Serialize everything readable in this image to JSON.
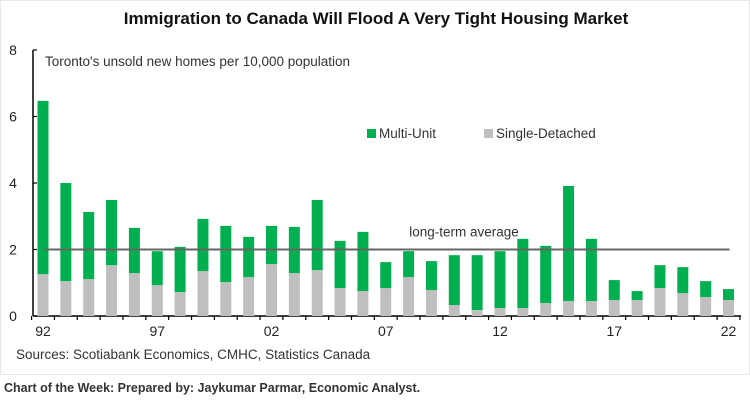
{
  "chart_data": {
    "type": "bar",
    "stacked": true,
    "title": "Immigration to Canada Will Flood A Very Tight Housing Market",
    "subtitle": "Toronto's unsold new homes per 10,000 population",
    "xlabel": "",
    "ylabel": "",
    "ylim": [
      0,
      8
    ],
    "yticks": [
      0,
      2,
      4,
      6,
      8
    ],
    "xtick_labels": [
      "92",
      "97",
      "02",
      "07",
      "12",
      "17",
      "22"
    ],
    "categories": [
      "1992",
      "1993",
      "1994",
      "1995",
      "1996",
      "1997",
      "1998",
      "1999",
      "2000",
      "2001",
      "2002",
      "2003",
      "2004",
      "2005",
      "2006",
      "2007",
      "2008",
      "2009",
      "2010",
      "2011",
      "2012",
      "2013",
      "2014",
      "2015",
      "2016",
      "2017",
      "2018",
      "2019",
      "2020",
      "2021",
      "2022"
    ],
    "series": [
      {
        "name": "Single-Detached",
        "color": "#bfbfbf",
        "values": [
          1.26,
          1.05,
          1.11,
          1.53,
          1.29,
          0.93,
          0.72,
          1.35,
          1.02,
          1.17,
          1.56,
          1.29,
          1.38,
          0.84,
          0.75,
          0.84,
          1.17,
          0.78,
          0.33,
          0.18,
          0.24,
          0.24,
          0.39,
          0.45,
          0.45,
          0.48,
          0.48,
          0.84,
          0.69,
          0.57,
          0.48
        ]
      },
      {
        "name": "Multi-Unit",
        "color": "#00b050",
        "values": [
          5.21,
          2.95,
          2.02,
          1.96,
          1.36,
          1.02,
          1.36,
          1.57,
          1.69,
          1.21,
          1.15,
          1.39,
          2.11,
          1.42,
          1.78,
          0.78,
          0.78,
          0.87,
          1.5,
          1.65,
          1.71,
          2.08,
          1.72,
          3.46,
          1.87,
          0.6,
          0.27,
          0.69,
          0.78,
          0.48,
          0.33
        ]
      }
    ],
    "reference_line": {
      "label": "long-term average",
      "value": 2.0,
      "color": "#666666"
    },
    "legend": {
      "position": "top-right",
      "entries": [
        "Multi-Unit",
        "Single-Detached"
      ]
    },
    "grid": false,
    "source": "Sources: Scotiabank Economics, CMHC, Statistics Canada"
  },
  "footer": "Chart of the Week: Prepared by: Jaykumar Parmar, Economic Analyst."
}
